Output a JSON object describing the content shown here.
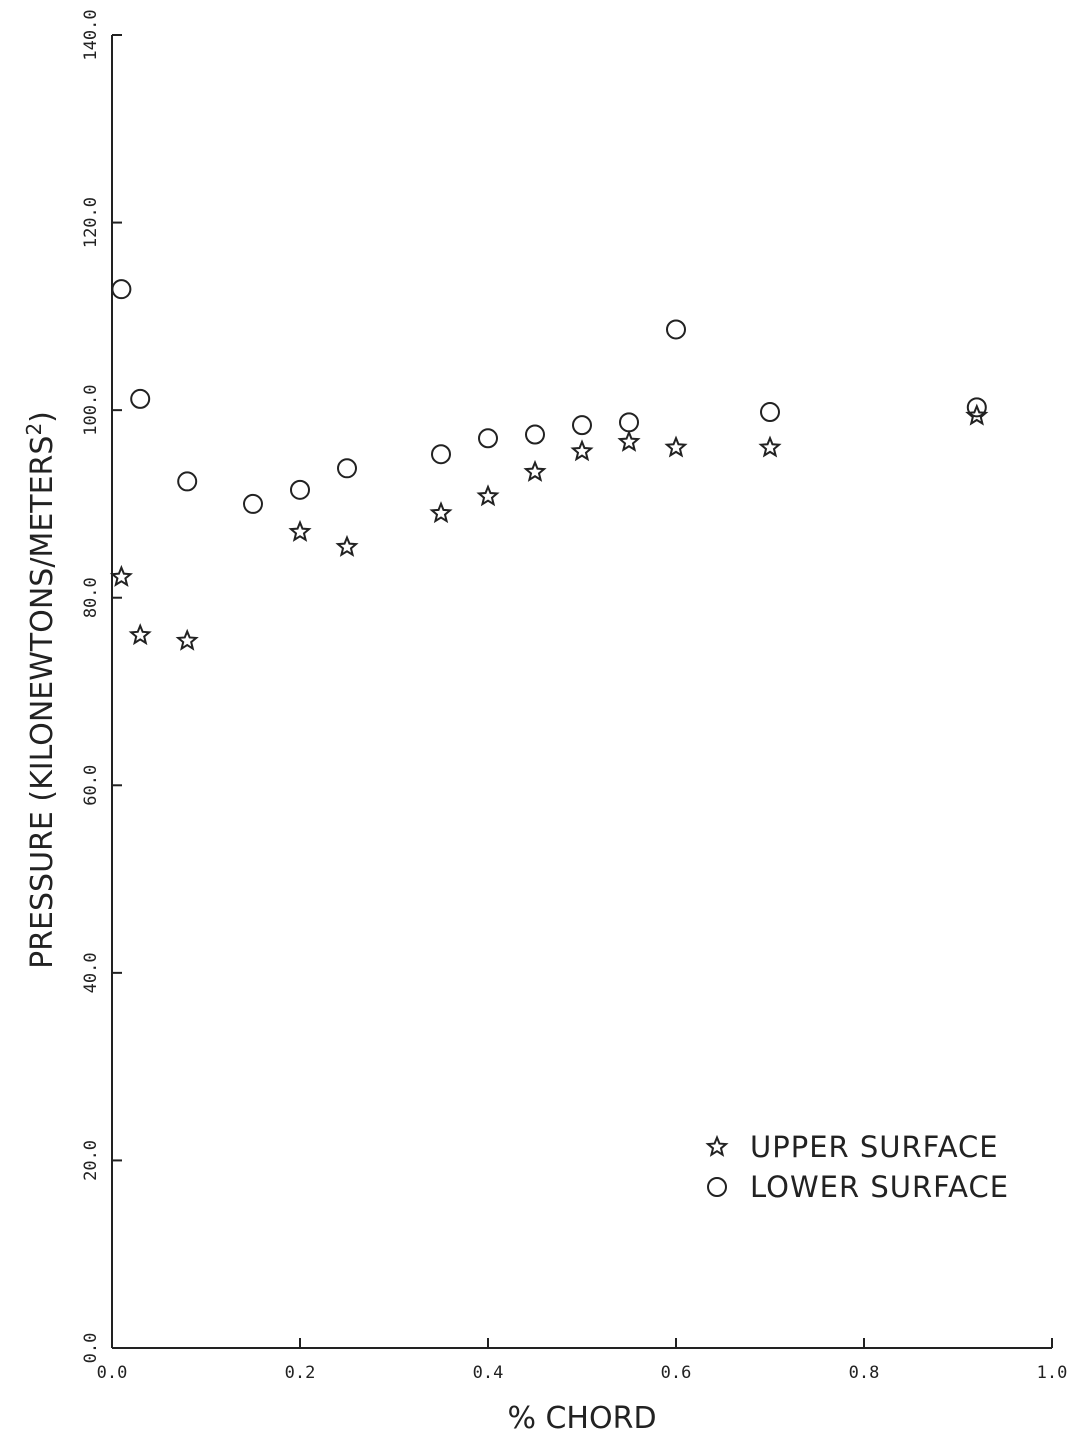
{
  "chart_data": {
    "type": "scatter",
    "title": "",
    "xlabel": "% CHORD",
    "ylabel_main": "PRESSURE (KILONEWTONS/METERS",
    "ylabel_sup": "2",
    "ylabel_close": ")",
    "xlim": [
      0.0,
      1.0
    ],
    "ylim": [
      0.0,
      140.0
    ],
    "x_ticks": [
      0.0,
      0.2,
      0.4,
      0.6,
      0.8,
      1.0
    ],
    "x_tick_labels": [
      "0.0",
      "0.2",
      "0.4",
      "0.6",
      "0.8",
      "1.0"
    ],
    "y_ticks": [
      0.0,
      20.0,
      40.0,
      60.0,
      80.0,
      100.0,
      120.0,
      140.0
    ],
    "y_tick_labels": [
      "0.0",
      "20.0",
      "40.0",
      "60.0",
      "80.0",
      "100.0",
      "120.0",
      "140.0"
    ],
    "grid": false,
    "legend_position": "bottom-right",
    "series": [
      {
        "name": "UPPER SURFACE",
        "marker": "star",
        "x": [
          0.01,
          0.03,
          0.08,
          0.2,
          0.25,
          0.35,
          0.4,
          0.45,
          0.5,
          0.55,
          0.6,
          0.7,
          0.92
        ],
        "y": [
          82.2,
          76.0,
          75.4,
          87.0,
          85.4,
          89.0,
          90.8,
          93.4,
          95.6,
          96.6,
          96.0,
          96.0,
          99.4
        ]
      },
      {
        "name": "LOWER SURFACE",
        "marker": "circle",
        "x": [
          0.01,
          0.03,
          0.08,
          0.15,
          0.2,
          0.25,
          0.35,
          0.4,
          0.45,
          0.5,
          0.55,
          0.6,
          0.7,
          0.92
        ],
        "y": [
          112.9,
          101.2,
          92.4,
          90.0,
          91.5,
          93.8,
          95.3,
          97.0,
          97.4,
          98.4,
          98.7,
          108.6,
          99.8,
          100.3
        ]
      }
    ]
  }
}
